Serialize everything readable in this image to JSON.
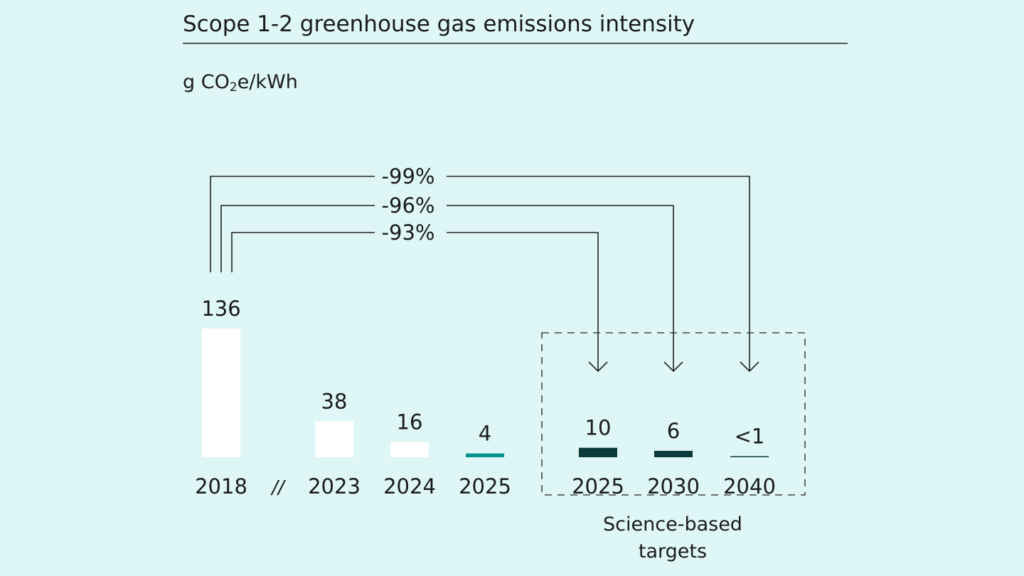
{
  "chart_data": {
    "type": "bar",
    "title": "Scope 1-2 greenhouse gas emissions intensity",
    "unit_prefix": "g CO",
    "unit_subscript": "2",
    "unit_suffix": "e/kWh",
    "axis_break_label": "//",
    "categories": [
      "2018",
      "2023",
      "2024",
      "2025",
      "2025",
      "2030",
      "2040"
    ],
    "series": [
      {
        "values": [
          136,
          38,
          16,
          4,
          10,
          6,
          0.8
        ],
        "labels": [
          "136",
          "38",
          "16",
          "4",
          "10",
          "6",
          "<1"
        ],
        "kinds": [
          "actual",
          "actual",
          "actual",
          "actual-latest",
          "target",
          "target",
          "target"
        ]
      }
    ],
    "reductions": [
      {
        "label": "-99%",
        "to_index": 6
      },
      {
        "label": "-96%",
        "to_index": 5
      },
      {
        "label": "-93%",
        "to_index": 4
      }
    ],
    "target_group_label_line1": "Science-based",
    "target_group_label_line2": "targets",
    "colors": {
      "background": "#dff6f7",
      "actual": "#ffffff",
      "actual-latest": "#00928f",
      "target": "#0d3a3a",
      "lines": "#222222"
    }
  }
}
